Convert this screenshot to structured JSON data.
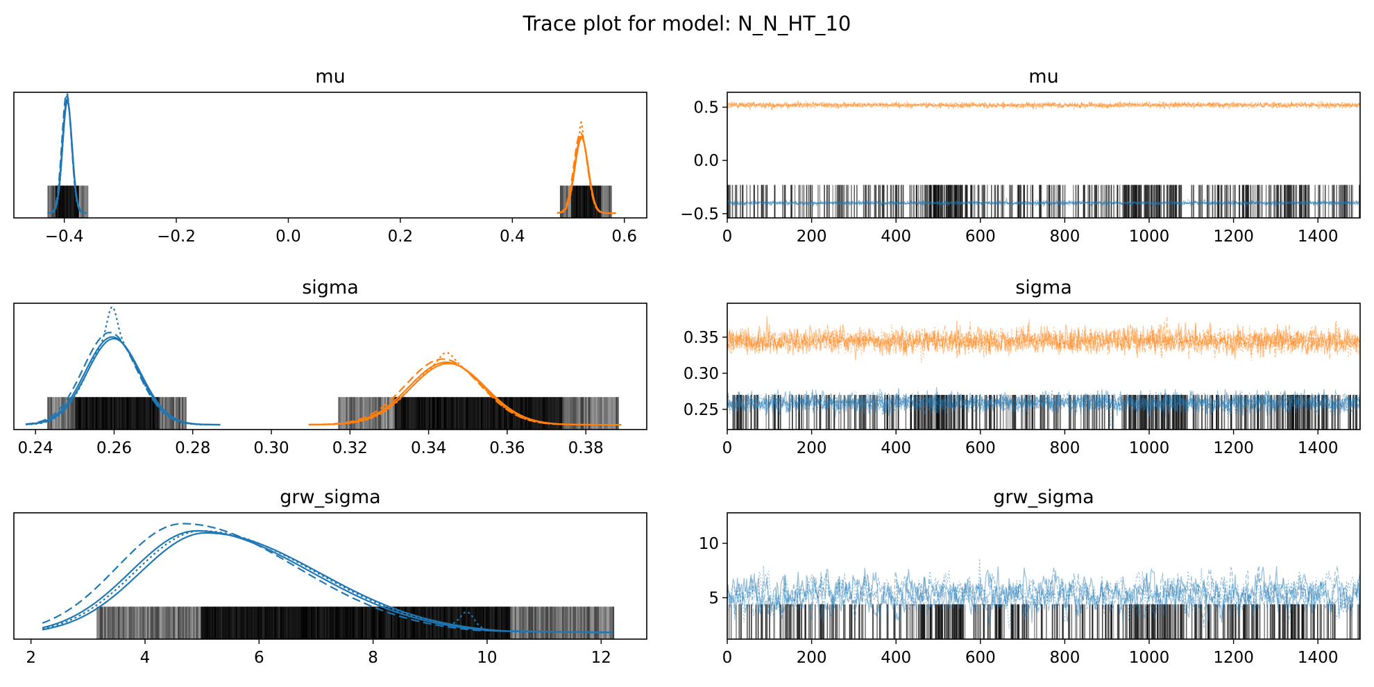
{
  "suptitle": "Trace plot for model: N_N_HT_10",
  "colors": {
    "chain0": "#1f77b4",
    "chain1": "#ff7f0e",
    "rug": "#000000"
  },
  "chart_data": [
    {
      "type": "line",
      "kind": "density",
      "title": "mu",
      "xlim": [
        -0.49,
        0.64
      ],
      "xticks": [
        -0.4,
        -0.2,
        0.0,
        0.2,
        0.4,
        0.6
      ],
      "xtick_labels": [
        "−0.4",
        "−0.2",
        "0.0",
        "0.2",
        "0.4",
        "0.6"
      ],
      "yticks": [],
      "ylim": [
        0,
        1.05
      ],
      "series": [
        {
          "color": "#1f77b4",
          "center": -0.395,
          "sd": 0.0085,
          "range": [
            -0.43,
            -0.36
          ],
          "peak": 0.95,
          "dotted_peak": 1.0
        },
        {
          "color": "#ff7f0e",
          "center": 0.523,
          "sd": 0.012,
          "range": [
            0.48,
            0.585
          ],
          "peak": 0.64,
          "dotted_peak": 0.76
        }
      ],
      "rug": {
        "ranges": [
          [
            -0.43,
            -0.36
          ],
          [
            0.485,
            0.575
          ]
        ],
        "height": 0.27
      }
    },
    {
      "type": "line",
      "kind": "trace",
      "title": "mu",
      "xlim": [
        0,
        1500
      ],
      "xticks": [
        0,
        200,
        400,
        600,
        800,
        1000,
        1200,
        1400
      ],
      "xtick_labels": [
        "0",
        "200",
        "400",
        "600",
        "800",
        "1000",
        "1200",
        "1400"
      ],
      "ylim": [
        -0.54,
        0.64
      ],
      "yticks": [
        -0.5,
        0.0,
        0.5
      ],
      "ytick_labels": [
        "−0.5",
        "0.0",
        "0.5"
      ],
      "series": [
        {
          "color": "#ff7f0e",
          "mean": 0.52,
          "sd": 0.012
        },
        {
          "color": "#1f77b4",
          "mean": -0.4,
          "sd": 0.009
        }
      ],
      "rug_y": [
        -0.54,
        -0.23
      ]
    },
    {
      "type": "line",
      "kind": "density",
      "title": "sigma",
      "xlim": [
        0.2345,
        0.3955
      ],
      "xticks": [
        0.24,
        0.26,
        0.28,
        0.3,
        0.32,
        0.34,
        0.36,
        0.38
      ],
      "xtick_labels": [
        "0.24",
        "0.26",
        "0.28",
        "0.30",
        "0.32",
        "0.34",
        "0.36",
        "0.38"
      ],
      "yticks": [],
      "ylim": [
        0,
        1.05
      ],
      "series": [
        {
          "color": "#1f77b4",
          "center": 0.2595,
          "sd": 0.0068,
          "range": [
            0.2375,
            0.287
          ],
          "peak": 0.73,
          "dotted_peak": 0.98
        },
        {
          "color": "#ff7f0e",
          "center": 0.3445,
          "sd": 0.0095,
          "range": [
            0.3095,
            0.389
          ],
          "peak": 0.52,
          "dotted_peak": 0.6
        }
      ],
      "rug": {
        "ranges": [
          [
            0.243,
            0.278
          ],
          [
            0.317,
            0.388
          ]
        ],
        "height": 0.27
      }
    },
    {
      "type": "line",
      "kind": "trace",
      "title": "sigma",
      "xlim": [
        0,
        1500
      ],
      "xticks": [
        0,
        200,
        400,
        600,
        800,
        1000,
        1200,
        1400
      ],
      "xtick_labels": [
        "0",
        "200",
        "400",
        "600",
        "800",
        "1000",
        "1200",
        "1400"
      ],
      "ylim": [
        0.222,
        0.397
      ],
      "yticks": [
        0.25,
        0.3,
        0.35
      ],
      "ytick_labels": [
        "0.25",
        "0.30",
        "0.35"
      ],
      "series": [
        {
          "color": "#ff7f0e",
          "mean": 0.345,
          "sd": 0.009
        },
        {
          "color": "#1f77b4",
          "mean": 0.259,
          "sd": 0.0068
        }
      ],
      "rug_y": [
        0.222,
        0.27
      ]
    },
    {
      "type": "line",
      "kind": "density",
      "title": "grw_sigma",
      "xlim": [
        1.7,
        12.8
      ],
      "xticks": [
        2,
        4,
        6,
        8,
        10,
        12
      ],
      "xtick_labels": [
        "2",
        "4",
        "6",
        "8",
        "10",
        "12"
      ],
      "yticks": [],
      "ylim": [
        0,
        1.05
      ],
      "series": [
        {
          "color": "#1f77b4",
          "mode": 4.9,
          "range": [
            2.2,
            12.2
          ],
          "peak": 0.86,
          "dashed_peak": 0.92,
          "bump_at": 9.65,
          "bump_height": 0.13
        }
      ],
      "rug": {
        "ranges": [
          [
            3.15,
            12.2
          ]
        ],
        "height": 0.27
      }
    },
    {
      "type": "line",
      "kind": "trace",
      "title": "grw_sigma",
      "xlim": [
        0,
        1500
      ],
      "xticks": [
        0,
        200,
        400,
        600,
        800,
        1000,
        1200,
        1400
      ],
      "xtick_labels": [
        "0",
        "200",
        "400",
        "600",
        "800",
        "1000",
        "1200",
        "1400"
      ],
      "ylim": [
        1.2,
        12.8
      ],
      "yticks": [
        5,
        10
      ],
      "ytick_labels": [
        "5",
        "10"
      ],
      "series": [
        {
          "color": "#1f77b4",
          "mean": 5.3,
          "sd": 1.4
        }
      ],
      "rug_y": [
        1.2,
        4.4
      ]
    }
  ]
}
